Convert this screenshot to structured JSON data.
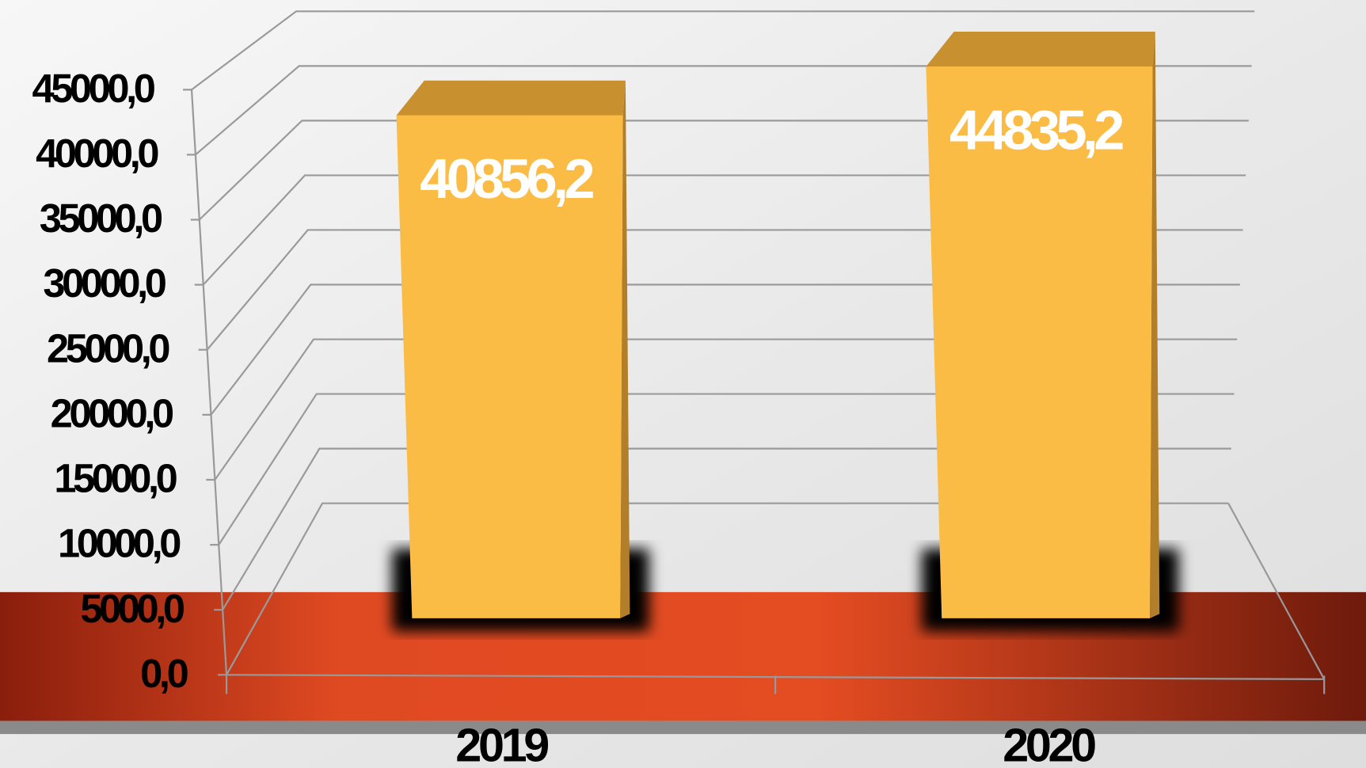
{
  "chart_data": {
    "type": "bar3d",
    "categories": [
      "2019",
      "2020"
    ],
    "values": [
      40856.2,
      44835.2
    ],
    "value_labels": [
      "40856,2",
      "44835,2"
    ],
    "color": "#fbbc45",
    "ylim": [
      0,
      45000
    ],
    "yticks": [
      {
        "value": 0,
        "label": "0,0"
      },
      {
        "value": 5000,
        "label": "5000,0"
      },
      {
        "value": 10000,
        "label": "10000,0"
      },
      {
        "value": 15000,
        "label": "15000,0"
      },
      {
        "value": 20000,
        "label": "20000,0"
      },
      {
        "value": 25000,
        "label": "25000,0"
      },
      {
        "value": 30000,
        "label": "30000,0"
      },
      {
        "value": 35000,
        "label": "35000,0"
      },
      {
        "value": 40000,
        "label": "40000,0"
      },
      {
        "value": 45000,
        "label": "45000,0"
      }
    ],
    "grid": true
  }
}
